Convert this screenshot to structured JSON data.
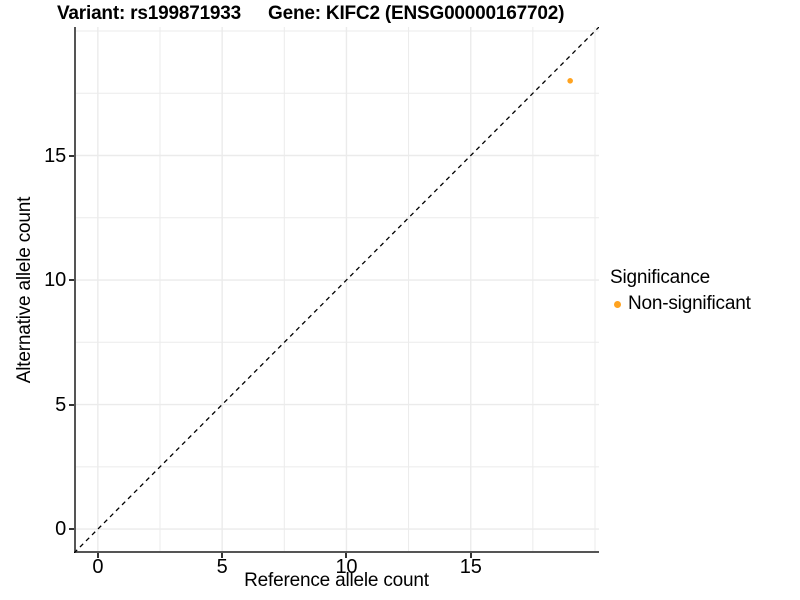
{
  "titles": {
    "left": "Variant: rs199871933",
    "right": "Gene: KIFC2 (ENSG00000167702)"
  },
  "axes": {
    "x_label": "Reference allele count",
    "y_label": "Alternative allele count"
  },
  "legend": {
    "title": "Significance",
    "items": [
      {
        "label": "Non-significant",
        "color": "#FFA320"
      }
    ]
  },
  "colors": {
    "background": "#FFFFFF",
    "grid": "#EBEBEB",
    "axis_line": "#555555",
    "tick_mark": "#333333",
    "identity_line": "#000000",
    "text": "#000000",
    "point": "#FFA320"
  },
  "chart_data": {
    "type": "scatter",
    "title": "Variant: rs199871933    Gene: KIFC2 (ENSG00000167702)",
    "xlabel": "Reference allele count",
    "ylabel": "Alternative allele count",
    "xlim": [
      -0.96,
      20.16
    ],
    "ylim": [
      -0.96,
      20.16
    ],
    "x_major_ticks": [
      0,
      5,
      10,
      15
    ],
    "x_tick_labels": [
      "0",
      "5",
      "10",
      "15"
    ],
    "y_major_ticks": [
      0,
      5,
      10,
      15
    ],
    "y_tick_labels": [
      "0",
      "5",
      "10",
      "15"
    ],
    "x_minor_ticks": [
      2.5,
      7.5,
      12.5,
      17.5,
      20
    ],
    "y_minor_ticks": [
      2.5,
      7.5,
      12.5,
      17.5,
      20
    ],
    "grid": true,
    "legend_position": "right",
    "reference_line": {
      "type": "identity",
      "slope": 1,
      "intercept": 0,
      "style": "dashed"
    },
    "series": [
      {
        "name": "Non-significant",
        "color": "#FFA320",
        "points": [
          {
            "x": 19,
            "y": 18
          }
        ]
      }
    ]
  }
}
